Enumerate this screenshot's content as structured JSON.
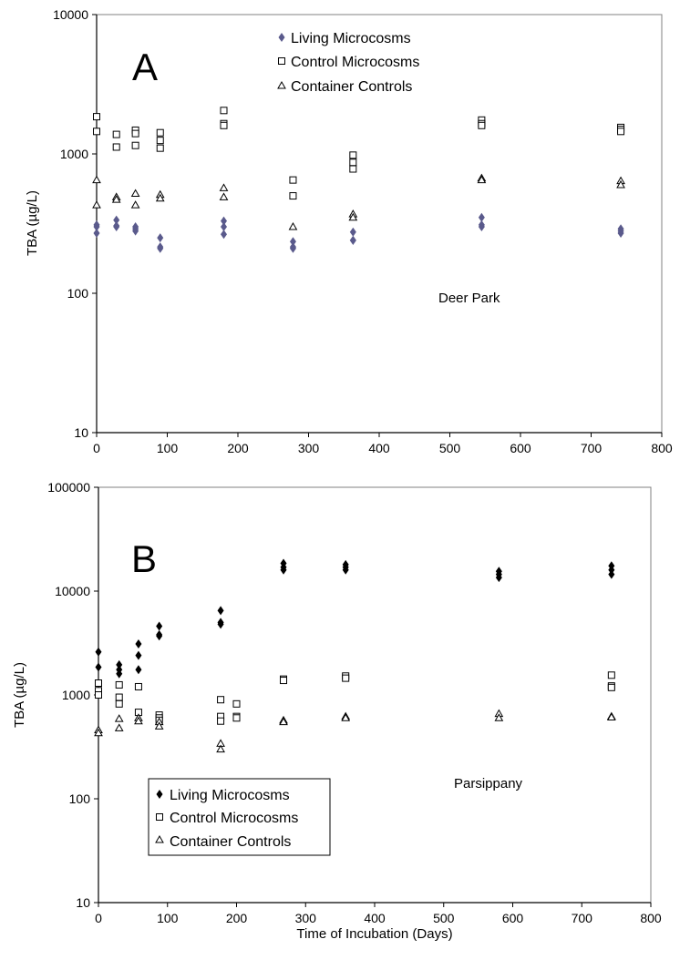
{
  "chart_data": [
    {
      "type": "scatter",
      "panel_label": "A",
      "site_label": "Deer Park",
      "xlabel": "",
      "ylabel": "TBA (µg/L)",
      "y_scale": "log",
      "xlim": [
        0,
        800
      ],
      "ylim": [
        10,
        10000
      ],
      "x_ticks": [
        "0",
        "100",
        "200",
        "300",
        "400",
        "500",
        "600",
        "700",
        "800"
      ],
      "y_ticks": [
        "10",
        "100",
        "1000",
        "10000"
      ],
      "legend_position": "top-center",
      "grid": false,
      "series": [
        {
          "name": "Living Microcosms",
          "marker": "diamond-filled",
          "color": "#5a5a8c",
          "points": [
            [
              0,
              270
            ],
            [
              0,
              300
            ],
            [
              0,
              310
            ],
            [
              28,
              300
            ],
            [
              28,
              335
            ],
            [
              28,
              305
            ],
            [
              55,
              280
            ],
            [
              55,
              300
            ],
            [
              55,
              290
            ],
            [
              90,
              250
            ],
            [
              90,
              215
            ],
            [
              90,
              210
            ],
            [
              180,
              330
            ],
            [
              180,
              300
            ],
            [
              180,
              265
            ],
            [
              278,
              235
            ],
            [
              278,
              210
            ],
            [
              278,
              215
            ],
            [
              363,
              275
            ],
            [
              363,
              240
            ],
            [
              363,
              240
            ],
            [
              545,
              350
            ],
            [
              545,
              300
            ],
            [
              545,
              310
            ],
            [
              742,
              290
            ],
            [
              742,
              280
            ],
            [
              742,
              270
            ]
          ]
        },
        {
          "name": "Control Microcosms",
          "marker": "square-open",
          "color": "#000000",
          "points": [
            [
              0,
              1850
            ],
            [
              0,
              1450
            ],
            [
              28,
              1380
            ],
            [
              28,
              1120
            ],
            [
              55,
              1480
            ],
            [
              55,
              1400
            ],
            [
              55,
              1150
            ],
            [
              90,
              1420
            ],
            [
              90,
              1250
            ],
            [
              90,
              1100
            ],
            [
              180,
              2050
            ],
            [
              180,
              1650
            ],
            [
              180,
              1600
            ],
            [
              278,
              650
            ],
            [
              278,
              500
            ],
            [
              363,
              980
            ],
            [
              363,
              870
            ],
            [
              363,
              780
            ],
            [
              545,
              1750
            ],
            [
              545,
              1650
            ],
            [
              545,
              1600
            ],
            [
              742,
              1550
            ],
            [
              742,
              1500
            ],
            [
              742,
              1450
            ]
          ]
        },
        {
          "name": "Container Controls",
          "marker": "triangle-open",
          "color": "#000000",
          "points": [
            [
              0,
              650
            ],
            [
              0,
              430
            ],
            [
              28,
              490
            ],
            [
              28,
              470
            ],
            [
              55,
              520
            ],
            [
              55,
              430
            ],
            [
              90,
              510
            ],
            [
              90,
              480
            ],
            [
              180,
              570
            ],
            [
              180,
              490
            ],
            [
              278,
              300
            ],
            [
              363,
              370
            ],
            [
              363,
              350
            ],
            [
              545,
              670
            ],
            [
              545,
              650
            ],
            [
              742,
              640
            ],
            [
              742,
              600
            ]
          ]
        }
      ]
    },
    {
      "type": "scatter",
      "panel_label": "B",
      "site_label": "Parsippany",
      "xlabel": "Time of Incubation (Days)",
      "ylabel": "TBA (µg/L)",
      "y_scale": "log",
      "xlim": [
        0,
        800
      ],
      "ylim": [
        10,
        100000
      ],
      "x_ticks": [
        "0",
        "100",
        "200",
        "300",
        "400",
        "500",
        "600",
        "700",
        "800"
      ],
      "y_ticks": [
        "10",
        "100",
        "1000",
        "10000",
        "100000"
      ],
      "legend_position": "bottom-left",
      "grid": false,
      "series": [
        {
          "name": "Living Microcosms",
          "marker": "diamond-filled",
          "color": "#000000",
          "points": [
            [
              0,
              2600
            ],
            [
              0,
              1850
            ],
            [
              30,
              1950
            ],
            [
              30,
              1750
            ],
            [
              30,
              1600
            ],
            [
              58,
              3100
            ],
            [
              58,
              2400
            ],
            [
              58,
              1750
            ],
            [
              88,
              4600
            ],
            [
              88,
              3800
            ],
            [
              88,
              3700
            ],
            [
              177,
              6500
            ],
            [
              177,
              5000
            ],
            [
              177,
              4800
            ],
            [
              268,
              18500
            ],
            [
              268,
              17000
            ],
            [
              268,
              16000
            ],
            [
              358,
              18000
            ],
            [
              358,
              17000
            ],
            [
              358,
              16000
            ],
            [
              580,
              15500
            ],
            [
              580,
              14500
            ],
            [
              580,
              13500
            ],
            [
              743,
              17500
            ],
            [
              743,
              16000
            ],
            [
              743,
              14500
            ]
          ]
        },
        {
          "name": "Control Microcosms",
          "marker": "square-open",
          "color": "#000000",
          "points": [
            [
              0,
              1300
            ],
            [
              0,
              1100
            ],
            [
              0,
              1000
            ],
            [
              30,
              1250
            ],
            [
              30,
              950
            ],
            [
              30,
              820
            ],
            [
              58,
              1200
            ],
            [
              58,
              680
            ],
            [
              88,
              640
            ],
            [
              88,
              600
            ],
            [
              88,
              570
            ],
            [
              177,
              900
            ],
            [
              177,
              620
            ],
            [
              177,
              560
            ],
            [
              200,
              820
            ],
            [
              200,
              620
            ],
            [
              200,
              600
            ],
            [
              268,
              1420
            ],
            [
              268,
              1380
            ],
            [
              358,
              1520
            ],
            [
              358,
              1450
            ],
            [
              743,
              1550
            ],
            [
              743,
              1220
            ],
            [
              743,
              1180
            ]
          ]
        },
        {
          "name": "Container Controls",
          "marker": "triangle-open",
          "color": "#000000",
          "points": [
            [
              0,
              460
            ],
            [
              0,
              430
            ],
            [
              30,
              590
            ],
            [
              30,
              480
            ],
            [
              58,
              600
            ],
            [
              58,
              560
            ],
            [
              88,
              550
            ],
            [
              88,
              500
            ],
            [
              177,
              340
            ],
            [
              177,
              300
            ],
            [
              268,
              570
            ],
            [
              268,
              550
            ],
            [
              358,
              620
            ],
            [
              358,
              600
            ],
            [
              580,
              660
            ],
            [
              580,
              600
            ],
            [
              743,
              620
            ],
            [
              743,
              610
            ]
          ]
        }
      ]
    }
  ]
}
